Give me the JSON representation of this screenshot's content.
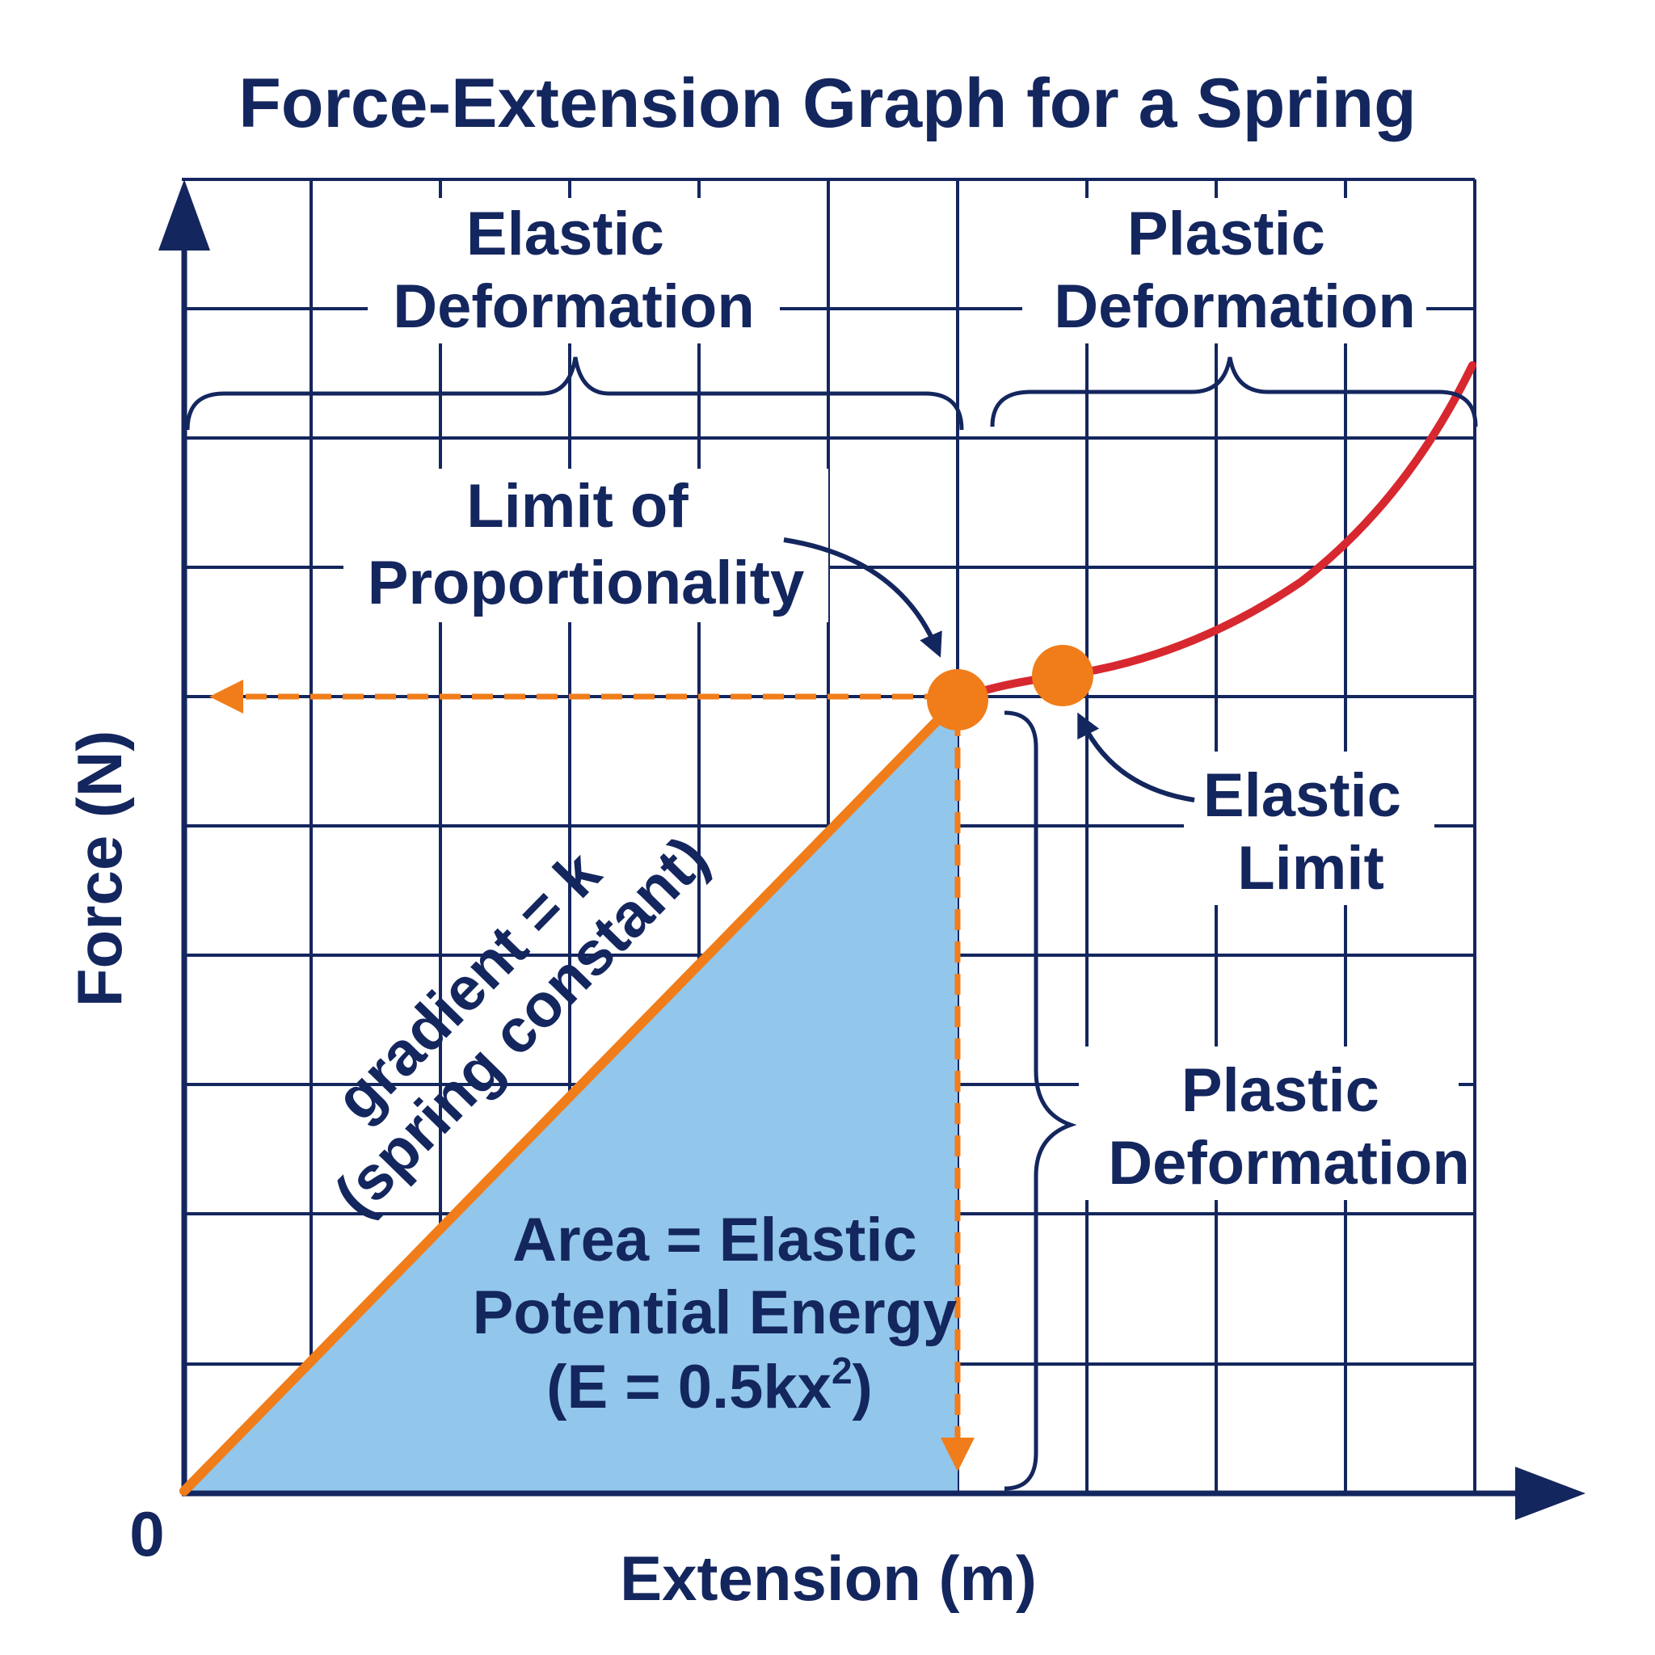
{
  "title": "Force-Extension Graph for a Spring",
  "axes": {
    "x_label": "Extension (m)",
    "y_label": "Force (N)",
    "origin_label": "0"
  },
  "annotations": {
    "elastic_region": [
      "Elastic",
      "Deformation"
    ],
    "plastic_region_top": [
      "Plastic",
      "Deformation"
    ],
    "limit_of_proportionality": [
      "Limit of",
      "Proportionality"
    ],
    "elastic_limit": [
      "Elastic",
      "Limit"
    ],
    "plastic_region_side": [
      "Plastic",
      "Deformation"
    ],
    "gradient": [
      "gradient = k",
      "(spring constant)"
    ],
    "area_line1": "Area = Elastic",
    "area_line2": "Potential Energy",
    "area_line3_prefix": "(E = 0.5kx",
    "area_line3_sup": "2",
    "area_line3_suffix": ")"
  },
  "colors": {
    "navy": "#14265e",
    "orange": "#f07d1a",
    "red": "#d7282f",
    "fill_blue": "#92c6ea",
    "background": "#ffffff"
  },
  "chart_data": {
    "type": "line",
    "title": "Force-Extension Graph for a Spring",
    "xlabel": "Extension (m)",
    "ylabel": "Force (N)",
    "grid": true
  }
}
